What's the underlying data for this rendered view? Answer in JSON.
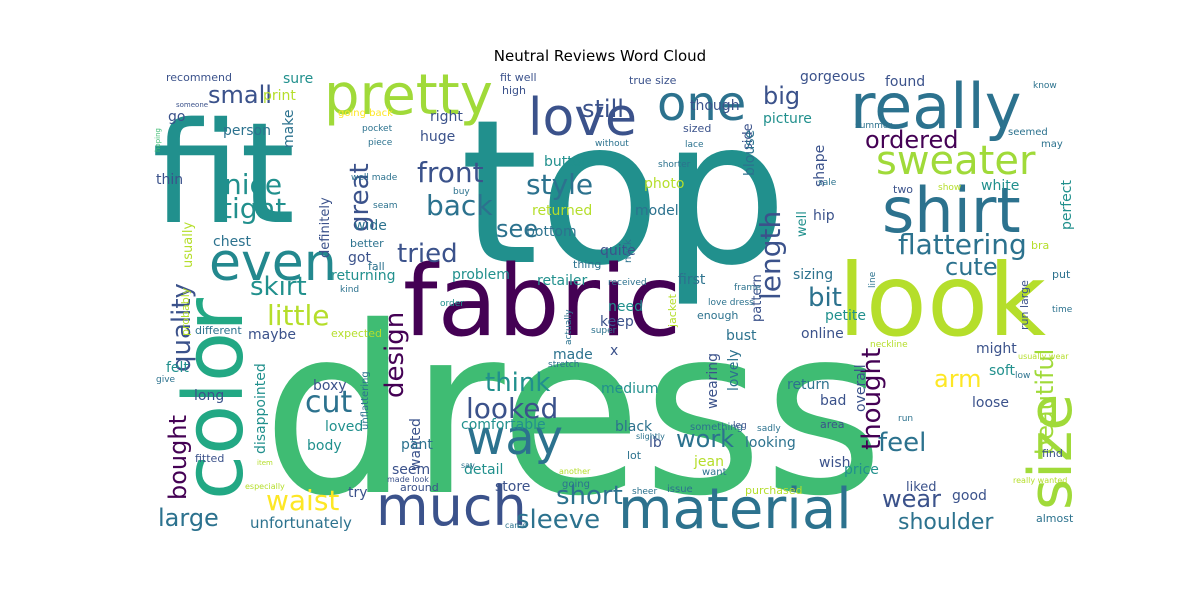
{
  "chart_data": {
    "type": "wordcloud",
    "title": "Neutral Reviews Word Cloud",
    "background": "#ffffff",
    "colormap": "viridis",
    "words": [
      {
        "text": "dress",
        "color": "#3fbc73"
      },
      {
        "text": "top",
        "color": "#21908d"
      },
      {
        "text": "fit",
        "color": "#21908d"
      },
      {
        "text": "fabric",
        "color": "#440154"
      },
      {
        "text": "look",
        "color": "#b5de2b"
      },
      {
        "text": "color",
        "color": "#22a884"
      },
      {
        "text": "material",
        "color": "#2c728e"
      },
      {
        "text": "really",
        "color": "#2c728e"
      },
      {
        "text": "pretty",
        "color": "#a0da39"
      },
      {
        "text": "shirt",
        "color": "#2c728e"
      },
      {
        "text": "size",
        "color": "#a0da39"
      },
      {
        "text": "much",
        "color": "#3b528b"
      },
      {
        "text": "way",
        "color": "#2c728e"
      },
      {
        "text": "love",
        "color": "#3b528b"
      },
      {
        "text": "one",
        "color": "#2c728e"
      },
      {
        "text": "even",
        "color": "#23888e"
      },
      {
        "text": "sweater",
        "color": "#a0da39"
      },
      {
        "text": "waist",
        "color": "#fde725"
      },
      {
        "text": "cut",
        "color": "#2c728e"
      },
      {
        "text": "looked",
        "color": "#3b528b"
      },
      {
        "text": "flattering",
        "color": "#2c728e"
      },
      {
        "text": "length",
        "color": "#3b528b"
      },
      {
        "text": "little",
        "color": "#b5de2b"
      },
      {
        "text": "tried",
        "color": "#3b528b"
      },
      {
        "text": "nice",
        "color": "#21908d"
      },
      {
        "text": "tight",
        "color": "#21908d"
      },
      {
        "text": "front",
        "color": "#3b528b"
      },
      {
        "text": "style",
        "color": "#2c728e"
      },
      {
        "text": "back",
        "color": "#2c728e"
      },
      {
        "text": "skirt",
        "color": "#21908d"
      },
      {
        "text": "quality",
        "color": "#3b528b"
      },
      {
        "text": "design",
        "color": "#440154"
      },
      {
        "text": "think",
        "color": "#21908d"
      },
      {
        "text": "short",
        "color": "#2c728e"
      },
      {
        "text": "sleeve",
        "color": "#2c728e"
      },
      {
        "text": "large",
        "color": "#2c728e"
      },
      {
        "text": "shoulder",
        "color": "#2c728e"
      },
      {
        "text": "cute",
        "color": "#2c728e"
      },
      {
        "text": "bit",
        "color": "#2c728e"
      },
      {
        "text": "arm",
        "color": "#fde725"
      },
      {
        "text": "thought",
        "color": "#440154"
      },
      {
        "text": "feel",
        "color": "#2c728e"
      },
      {
        "text": "beautiful",
        "color": "#a0da39"
      },
      {
        "text": "wear",
        "color": "#3b528b"
      },
      {
        "text": "work",
        "color": "#2c728e"
      },
      {
        "text": "great",
        "color": "#3b528b"
      },
      {
        "text": "bought",
        "color": "#440154"
      },
      {
        "text": "small",
        "color": "#3b528b"
      },
      {
        "text": "still",
        "color": "#3b528b"
      },
      {
        "text": "big",
        "color": "#3b528b"
      },
      {
        "text": "ordered",
        "color": "#440154"
      },
      {
        "text": "see",
        "color": "#2c728e"
      },
      {
        "text": "unfortunately",
        "color": "#2c728e"
      },
      {
        "text": "recommend",
        "color": "#3b528b"
      },
      {
        "text": "sure",
        "color": "#21908d"
      },
      {
        "text": "print",
        "color": "#b5de2b"
      },
      {
        "text": "go",
        "color": "#3b528b"
      },
      {
        "text": "person",
        "color": "#2c728e"
      },
      {
        "text": "make",
        "color": "#2c728e"
      },
      {
        "text": "right",
        "color": "#3b528b"
      },
      {
        "text": "huge",
        "color": "#3b528b"
      },
      {
        "text": "thin",
        "color": "#3b528b"
      },
      {
        "text": "definitely",
        "color": "#3b528b"
      },
      {
        "text": "usually",
        "color": "#b5de2b"
      },
      {
        "text": "wide",
        "color": "#2c728e"
      },
      {
        "text": "chest",
        "color": "#2c728e"
      },
      {
        "text": "got",
        "color": "#3b528b"
      },
      {
        "text": "returning",
        "color": "#21908d"
      },
      {
        "text": "maybe",
        "color": "#3b528b"
      },
      {
        "text": "felt",
        "color": "#21908d"
      },
      {
        "text": "long",
        "color": "#3b528b"
      },
      {
        "text": "boxy",
        "color": "#3b528b"
      },
      {
        "text": "disappointed",
        "color": "#21908d"
      },
      {
        "text": "loved",
        "color": "#21908d"
      },
      {
        "text": "body",
        "color": "#21908d"
      },
      {
        "text": "wanted",
        "color": "#3b528b"
      },
      {
        "text": "seem",
        "color": "#3b528b"
      },
      {
        "text": "try",
        "color": "#3b528b"
      },
      {
        "text": "around",
        "color": "#3b528b"
      },
      {
        "text": "fitted",
        "color": "#3b528b"
      },
      {
        "text": "detail",
        "color": "#21908d"
      },
      {
        "text": "store",
        "color": "#3b528b"
      },
      {
        "text": "comfortable",
        "color": "#21908d"
      },
      {
        "text": "pant",
        "color": "#2c728e"
      },
      {
        "text": "gorgeous",
        "color": "#3b528b"
      },
      {
        "text": "found",
        "color": "#3b528b"
      },
      {
        "text": "though",
        "color": "#3b528b"
      },
      {
        "text": "picture",
        "color": "#21908d"
      },
      {
        "text": "side",
        "color": "#3b528b"
      },
      {
        "text": "blouse",
        "color": "#2c728e"
      },
      {
        "text": "shape",
        "color": "#3b528b"
      },
      {
        "text": "button",
        "color": "#21908d"
      },
      {
        "text": "photo",
        "color": "#b5de2b"
      },
      {
        "text": "returned",
        "color": "#b5de2b"
      },
      {
        "text": "model",
        "color": "#2c728e"
      },
      {
        "text": "hip",
        "color": "#3b528b"
      },
      {
        "text": "well",
        "color": "#21908d"
      },
      {
        "text": "white",
        "color": "#21908d"
      },
      {
        "text": "perfect",
        "color": "#21908d"
      },
      {
        "text": "bottom",
        "color": "#2c728e"
      },
      {
        "text": "quite",
        "color": "#3b528b"
      },
      {
        "text": "problem",
        "color": "#21908d"
      },
      {
        "text": "retailer",
        "color": "#21908d"
      },
      {
        "text": "first",
        "color": "#2c728e"
      },
      {
        "text": "sizing",
        "color": "#2c728e"
      },
      {
        "text": "need",
        "color": "#21908d"
      },
      {
        "text": "keep",
        "color": "#3b528b"
      },
      {
        "text": "online",
        "color": "#3b528b"
      },
      {
        "text": "petite",
        "color": "#21908d"
      },
      {
        "text": "bust",
        "color": "#2c728e"
      },
      {
        "text": "pattern",
        "color": "#3b528b"
      },
      {
        "text": "made",
        "color": "#2c728e"
      },
      {
        "text": "x",
        "color": "#3b528b"
      },
      {
        "text": "medium",
        "color": "#21908d"
      },
      {
        "text": "wearing",
        "color": "#3b528b"
      },
      {
        "text": "lovely",
        "color": "#2c728e"
      },
      {
        "text": "return",
        "color": "#2c728e"
      },
      {
        "text": "overall",
        "color": "#3b528b"
      },
      {
        "text": "bad",
        "color": "#3b528b"
      },
      {
        "text": "soft",
        "color": "#21908d"
      },
      {
        "text": "might",
        "color": "#3b528b"
      },
      {
        "text": "loose",
        "color": "#3b528b"
      },
      {
        "text": "black",
        "color": "#2c728e"
      },
      {
        "text": "lb",
        "color": "#3b528b"
      },
      {
        "text": "looking",
        "color": "#2c728e"
      },
      {
        "text": "jean",
        "color": "#b5de2b"
      },
      {
        "text": "wish",
        "color": "#3b528b"
      },
      {
        "text": "price",
        "color": "#21908d"
      },
      {
        "text": "liked",
        "color": "#3b528b"
      },
      {
        "text": "good",
        "color": "#3b528b"
      },
      {
        "text": "purchased",
        "color": "#b5de2b"
      },
      {
        "text": "run large",
        "color": "#3b528b"
      },
      {
        "text": "find",
        "color": "#3b528b"
      },
      {
        "text": "area",
        "color": "#3b528b"
      },
      {
        "text": "enough",
        "color": "#2c728e"
      },
      {
        "text": "fit well",
        "color": "#3b528b"
      },
      {
        "text": "high",
        "color": "#3b528b"
      },
      {
        "text": "true size",
        "color": "#3b528b"
      },
      {
        "text": "sized",
        "color": "#3b528b"
      },
      {
        "text": "going back",
        "color": "#fde725"
      },
      {
        "text": "pocket",
        "color": "#2c728e"
      },
      {
        "text": "piece",
        "color": "#2c728e"
      },
      {
        "text": "without",
        "color": "#2c728e"
      },
      {
        "text": "summer",
        "color": "#2c728e"
      },
      {
        "text": "seemed",
        "color": "#2c728e"
      },
      {
        "text": "may",
        "color": "#2c728e"
      },
      {
        "text": "lace",
        "color": "#2c728e"
      },
      {
        "text": "frame",
        "color": "#2c728e"
      },
      {
        "text": "two",
        "color": "#3b528b"
      },
      {
        "text": "shorter",
        "color": "#2c728e"
      },
      {
        "text": "well made",
        "color": "#2c728e"
      },
      {
        "text": "seam",
        "color": "#2c728e"
      },
      {
        "text": "better",
        "color": "#2c728e"
      },
      {
        "text": "fall",
        "color": "#2c728e"
      },
      {
        "text": "thing",
        "color": "#2c728e"
      },
      {
        "text": "received",
        "color": "#2c728e"
      },
      {
        "text": "kind",
        "color": "#2c728e"
      },
      {
        "text": "order",
        "color": "#21908d"
      },
      {
        "text": "different",
        "color": "#2c728e"
      },
      {
        "text": "expected",
        "color": "#b5de2b"
      },
      {
        "text": "probably",
        "color": "#b5de2b"
      },
      {
        "text": "love dress",
        "color": "#2c728e"
      },
      {
        "text": "super",
        "color": "#2c728e"
      },
      {
        "text": "actually",
        "color": "#2c728e"
      },
      {
        "text": "jacket",
        "color": "#b5de2b"
      },
      {
        "text": "put",
        "color": "#2c728e"
      },
      {
        "text": "time",
        "color": "#2c728e"
      },
      {
        "text": "line",
        "color": "#2c728e"
      },
      {
        "text": "bra",
        "color": "#b5de2b"
      },
      {
        "text": "sale",
        "color": "#2c728e"
      },
      {
        "text": "show",
        "color": "#b5de2b"
      },
      {
        "text": "buy",
        "color": "#2c728e"
      },
      {
        "text": "hoping",
        "color": "#3fbc73"
      },
      {
        "text": "someone",
        "color": "#3b528b"
      },
      {
        "text": "stretch",
        "color": "#2c728e"
      },
      {
        "text": "give",
        "color": "#2c728e"
      },
      {
        "text": "unflattering",
        "color": "#2c728e"
      },
      {
        "text": "neckline",
        "color": "#b5de2b"
      },
      {
        "text": "usually wear",
        "color": "#b5de2b"
      },
      {
        "text": "low",
        "color": "#2c728e"
      },
      {
        "text": "run",
        "color": "#2c728e"
      },
      {
        "text": "something",
        "color": "#2c728e"
      },
      {
        "text": "leg",
        "color": "#3b528b"
      },
      {
        "text": "slightly",
        "color": "#2c728e"
      },
      {
        "text": "sadly",
        "color": "#2c728e"
      },
      {
        "text": "neck",
        "color": "#2c728e"
      },
      {
        "text": "know",
        "color": "#2c728e"
      },
      {
        "text": "almost",
        "color": "#2c728e"
      },
      {
        "text": "really wanted",
        "color": "#b5de2b"
      },
      {
        "text": "want",
        "color": "#2c728e"
      },
      {
        "text": "lot",
        "color": "#2c728e"
      },
      {
        "text": "issue",
        "color": "#2c728e"
      },
      {
        "text": "sheer",
        "color": "#2c728e"
      },
      {
        "text": "came",
        "color": "#2c728e"
      },
      {
        "text": "another",
        "color": "#b5de2b"
      },
      {
        "text": "going",
        "color": "#2c728e"
      },
      {
        "text": "made look",
        "color": "#3b528b"
      },
      {
        "text": "say",
        "color": "#2c728e"
      },
      {
        "text": "especially",
        "color": "#b5de2b"
      },
      {
        "text": "item",
        "color": "#b5de2b"
      }
    ]
  }
}
